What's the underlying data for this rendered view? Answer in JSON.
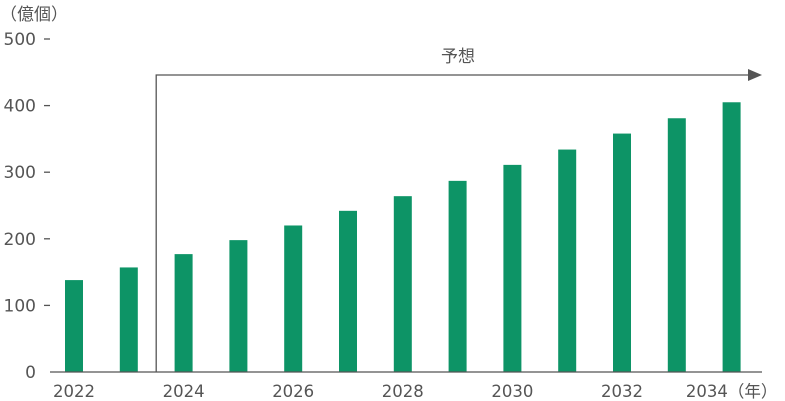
{
  "chart_data": {
    "type": "bar",
    "x": [
      2022,
      2023,
      2024,
      2025,
      2026,
      2027,
      2028,
      2029,
      2030,
      2031,
      2032,
      2033,
      2034
    ],
    "values": [
      138,
      157,
      177,
      198,
      220,
      242,
      264,
      287,
      311,
      334,
      358,
      381,
      405
    ],
    "ylabel": "（億個）",
    "xunit": "（年）",
    "ylim": [
      0,
      500
    ],
    "yticks": [
      0,
      100,
      200,
      300,
      400,
      500
    ],
    "xtick_labels": [
      "2022",
      "2024",
      "2026",
      "2028",
      "2030",
      "2032",
      "2034"
    ],
    "forecast": {
      "label": "予想",
      "start": 2024
    },
    "bar_color": "#0d9466",
    "grid": false
  }
}
